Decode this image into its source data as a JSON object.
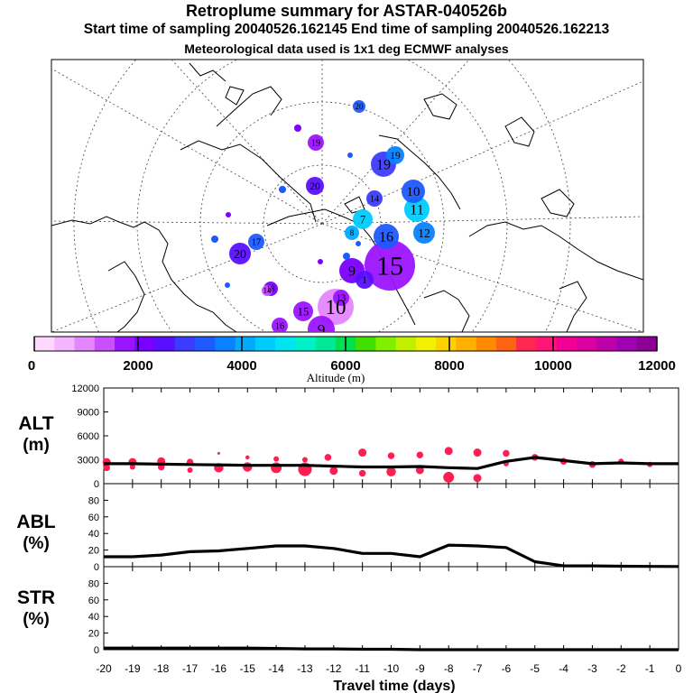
{
  "header": {
    "title": "Retroplume summary for ASTAR-040526b",
    "sampling": "Start time of sampling 20040526.162145     End time of sampling 20040526.162213",
    "meteo": "Meteorological data used is 1x1 deg ECMWF analyses"
  },
  "colorbar": {
    "label": "Altitude (m)",
    "ticks": [
      0,
      2000,
      4000,
      6000,
      8000,
      10000,
      12000
    ],
    "colors": [
      "#ffd8ff",
      "#f4b4ff",
      "#e487ff",
      "#c850ff",
      "#9b14ff",
      "#7a00ff",
      "#5a10ff",
      "#3c3cff",
      "#1e5aff",
      "#0a82ff",
      "#00aaff",
      "#00ccff",
      "#00e4f0",
      "#00f0c8",
      "#00e896",
      "#00e050",
      "#40e000",
      "#80f000",
      "#c0f000",
      "#f0f000",
      "#ffd000",
      "#ffb000",
      "#ff8c00",
      "#ff6414",
      "#ff2850",
      "#ff1478",
      "#f00096",
      "#dc00a0",
      "#be00aa",
      "#a000b4",
      "#8c0096"
    ]
  },
  "map": {
    "points": [
      {
        "label": "20",
        "day": 20,
        "alt": 3200
      },
      {
        "label": "19",
        "day": 19,
        "alt": 3600
      },
      {
        "label": "19",
        "day": 19,
        "alt": 1900
      },
      {
        "label": "20",
        "day": 20,
        "alt": 2400
      },
      {
        "label": "19",
        "day": 19,
        "alt": 2800
      },
      {
        "label": "10",
        "day": 10,
        "alt": 3300
      },
      {
        "label": "11",
        "day": 11,
        "alt": 4300
      },
      {
        "label": "14",
        "day": 14,
        "alt": 2900
      },
      {
        "label": "7",
        "day": 7,
        "alt": 4500
      },
      {
        "label": "12",
        "day": 12,
        "alt": 3800
      },
      {
        "label": "16",
        "day": 16,
        "alt": 3400
      },
      {
        "label": "15",
        "day": 15,
        "alt": 1800
      },
      {
        "label": "20",
        "day": 20,
        "alt": 2600
      },
      {
        "label": "17",
        "day": 17,
        "alt": 3100
      },
      {
        "label": "18",
        "day": 18,
        "alt": 2000
      },
      {
        "label": "1",
        "day": 1,
        "alt": 2500
      },
      {
        "label": "13",
        "day": 13,
        "alt": 1600
      },
      {
        "label": "15",
        "day": 15,
        "alt": 1700
      },
      {
        "label": "10",
        "day": 10,
        "alt": 900
      },
      {
        "label": "9",
        "day": 9,
        "alt": 1900
      },
      {
        "label": "14",
        "day": 14,
        "alt": 1300
      },
      {
        "label": "16",
        "day": 16,
        "alt": 1800
      },
      {
        "label": "8",
        "day": 8,
        "alt": 3900
      },
      {
        "label": "9",
        "day": 9,
        "alt": 2100
      }
    ]
  },
  "chart_data": [
    {
      "type": "line",
      "title": "ALT",
      "ylabel": "(m)",
      "ylim": [
        0,
        12000
      ],
      "yticks": [
        0,
        3000,
        6000,
        9000,
        12000
      ],
      "x": [
        -20,
        -19,
        -18,
        -17,
        -16,
        -15,
        -14,
        -13,
        -12,
        -11,
        -10,
        -9,
        -8,
        -7,
        -6,
        -5,
        -4,
        -3,
        -2,
        -1,
        0
      ],
      "series": [
        {
          "name": "median altitude",
          "values": [
            2500,
            2500,
            2450,
            2400,
            2350,
            2300,
            2300,
            2300,
            2200,
            2100,
            2100,
            2150,
            2000,
            1900,
            2800,
            3300,
            2900,
            2500,
            2600,
            2500,
            2500
          ]
        }
      ],
      "scatter": [
        {
          "x": -19.9,
          "y": 2700,
          "s": 6
        },
        {
          "x": -19.9,
          "y": 2000,
          "s": 5
        },
        {
          "x": -19.0,
          "y": 2700,
          "s": 6
        },
        {
          "x": -19.0,
          "y": 2100,
          "s": 4
        },
        {
          "x": -18.0,
          "y": 2800,
          "s": 6
        },
        {
          "x": -18.0,
          "y": 2100,
          "s": 5
        },
        {
          "x": -17.0,
          "y": 2700,
          "s": 5
        },
        {
          "x": -17.0,
          "y": 1700,
          "s": 4
        },
        {
          "x": -16.0,
          "y": 2000,
          "s": 7
        },
        {
          "x": -16.0,
          "y": 3800,
          "s": 2
        },
        {
          "x": -15.0,
          "y": 2100,
          "s": 7
        },
        {
          "x": -15.0,
          "y": 3300,
          "s": 3
        },
        {
          "x": -14.0,
          "y": 2000,
          "s": 8
        },
        {
          "x": -14.0,
          "y": 3100,
          "s": 4
        },
        {
          "x": -13.0,
          "y": 1800,
          "s": 10
        },
        {
          "x": -13.0,
          "y": 3000,
          "s": 4
        },
        {
          "x": -12.2,
          "y": 3300,
          "s": 5
        },
        {
          "x": -12.0,
          "y": 1600,
          "s": 6
        },
        {
          "x": -11.0,
          "y": 3900,
          "s": 6
        },
        {
          "x": -11.0,
          "y": 1300,
          "s": 5
        },
        {
          "x": -10.0,
          "y": 3500,
          "s": 5
        },
        {
          "x": -10.0,
          "y": 1500,
          "s": 7
        },
        {
          "x": -9.0,
          "y": 3600,
          "s": 5
        },
        {
          "x": -9.0,
          "y": 1700,
          "s": 6
        },
        {
          "x": -8.0,
          "y": 4100,
          "s": 6
        },
        {
          "x": -8.0,
          "y": 800,
          "s": 8
        },
        {
          "x": -7.0,
          "y": 3900,
          "s": 6
        },
        {
          "x": -7.0,
          "y": 700,
          "s": 6
        },
        {
          "x": -6.0,
          "y": 3800,
          "s": 5
        },
        {
          "x": -6.0,
          "y": 2500,
          "s": 4
        },
        {
          "x": -5.0,
          "y": 3300,
          "s": 5
        },
        {
          "x": -4.0,
          "y": 2800,
          "s": 5
        },
        {
          "x": -3.0,
          "y": 2400,
          "s": 5
        },
        {
          "x": -2.0,
          "y": 2800,
          "s": 4
        },
        {
          "x": -1.0,
          "y": 2400,
          "s": 4
        }
      ]
    },
    {
      "type": "line",
      "title": "ABL",
      "ylabel": "(%)",
      "ylim": [
        0,
        100
      ],
      "yticks": [
        0,
        20,
        40,
        60,
        80
      ],
      "x": [
        -20,
        -19,
        -18,
        -17,
        -16,
        -15,
        -14,
        -13,
        -12,
        -11,
        -10,
        -9,
        -8,
        -7,
        -6,
        -5,
        -4,
        -3,
        -2,
        -1,
        0
      ],
      "series": [
        {
          "name": "fraction in boundary layer",
          "values": [
            12,
            12,
            14,
            18,
            19,
            22,
            25,
            25,
            22,
            16,
            16,
            12,
            26,
            25,
            23,
            6,
            1,
            1,
            0.5,
            0.3,
            0.2
          ]
        }
      ]
    },
    {
      "type": "line",
      "title": "STR",
      "ylabel": "(%)",
      "ylim": [
        0,
        100
      ],
      "yticks": [
        0,
        20,
        40,
        60,
        80
      ],
      "x": [
        -20,
        -19,
        -18,
        -17,
        -16,
        -15,
        -14,
        -13,
        -12,
        -11,
        -10,
        -9,
        -8,
        -7,
        -6,
        -5,
        -4,
        -3,
        -2,
        -1,
        0
      ],
      "series": [
        {
          "name": "fraction in stratosphere",
          "values": [
            2,
            2,
            2,
            2,
            2,
            2,
            1.5,
            1,
            1,
            0.5,
            0.5,
            0,
            0,
            0,
            0,
            0,
            0,
            0,
            0,
            0,
            0
          ]
        }
      ],
      "xlabel": "Travel time (days)",
      "xtick_labels": [
        "-20",
        "-19",
        "-18",
        "-17",
        "-16",
        "-15",
        "-14",
        "-13",
        "-12",
        "-11",
        "-10",
        "-9",
        "-8",
        "-7",
        "-6",
        "-5",
        "-4",
        "-3",
        "-2",
        "-1",
        "0"
      ]
    }
  ]
}
